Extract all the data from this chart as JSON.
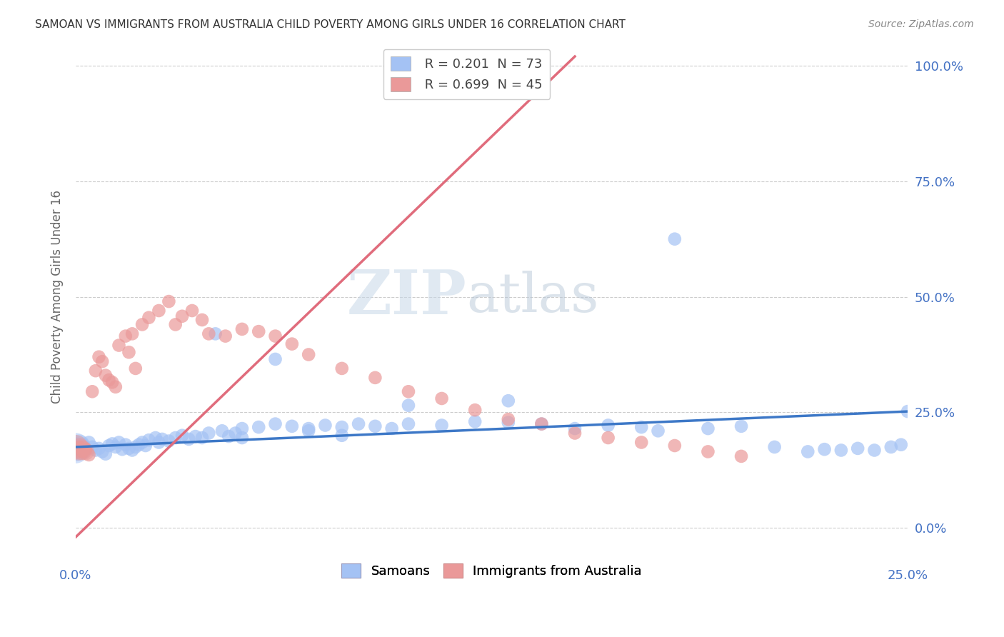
{
  "title": "SAMOAN VS IMMIGRANTS FROM AUSTRALIA CHILD POVERTY AMONG GIRLS UNDER 16 CORRELATION CHART",
  "source": "Source: ZipAtlas.com",
  "ylabel": "Child Poverty Among Girls Under 16",
  "samoan_color": "#a4c2f4",
  "australia_color": "#ea9999",
  "samoan_line_color": "#3d78c7",
  "australia_line_color": "#e06c7c",
  "watermark_zip_color": "#c8d8e8",
  "watermark_atlas_color": "#b8c8d8",
  "background_color": "#ffffff",
  "grid_color": "#cccccc",
  "axis_label_color": "#4472c4",
  "title_color": "#333333",
  "source_color": "#888888",
  "R_samoan": 0.201,
  "N_samoan": 73,
  "R_aus": 0.699,
  "N_aus": 45,
  "xlim": [
    0.0,
    0.25
  ],
  "ylim": [
    -0.05,
    1.05
  ],
  "yticks": [
    0.0,
    0.25,
    0.5,
    0.75,
    1.0
  ],
  "ytick_labels": [
    "0.0%",
    "25.0%",
    "50.0%",
    "75.0%",
    "100.0%"
  ],
  "xtick_labels_show": [
    "0.0%",
    "25.0%"
  ],
  "samoan_scatter": {
    "x": [
      0.001,
      0.002,
      0.003,
      0.004,
      0.005,
      0.006,
      0.007,
      0.008,
      0.009,
      0.01,
      0.011,
      0.012,
      0.013,
      0.014,
      0.015,
      0.016,
      0.017,
      0.018,
      0.019,
      0.02,
      0.021,
      0.022,
      0.024,
      0.025,
      0.026,
      0.028,
      0.03,
      0.032,
      0.034,
      0.036,
      0.038,
      0.04,
      0.042,
      0.044,
      0.046,
      0.048,
      0.05,
      0.055,
      0.06,
      0.065,
      0.07,
      0.075,
      0.08,
      0.085,
      0.09,
      0.095,
      0.1,
      0.11,
      0.12,
      0.13,
      0.14,
      0.15,
      0.16,
      0.17,
      0.175,
      0.18,
      0.19,
      0.2,
      0.21,
      0.22,
      0.225,
      0.23,
      0.235,
      0.24,
      0.245,
      0.248,
      0.25,
      0.06,
      0.08,
      0.1,
      0.13,
      0.05,
      0.07
    ],
    "y": [
      0.175,
      0.18,
      0.17,
      0.185,
      0.175,
      0.168,
      0.172,
      0.165,
      0.16,
      0.178,
      0.182,
      0.175,
      0.185,
      0.17,
      0.18,
      0.172,
      0.168,
      0.175,
      0.18,
      0.185,
      0.178,
      0.19,
      0.195,
      0.185,
      0.192,
      0.188,
      0.195,
      0.2,
      0.192,
      0.198,
      0.195,
      0.205,
      0.42,
      0.21,
      0.198,
      0.205,
      0.215,
      0.218,
      0.225,
      0.22,
      0.215,
      0.222,
      0.218,
      0.225,
      0.22,
      0.215,
      0.225,
      0.222,
      0.23,
      0.228,
      0.225,
      0.215,
      0.222,
      0.218,
      0.21,
      0.625,
      0.215,
      0.22,
      0.175,
      0.165,
      0.17,
      0.168,
      0.172,
      0.168,
      0.175,
      0.18,
      0.252,
      0.365,
      0.2,
      0.265,
      0.275,
      0.195,
      0.21
    ],
    "sizes": [
      180,
      180,
      180,
      180,
      180,
      180,
      180,
      180,
      180,
      180,
      180,
      180,
      180,
      180,
      180,
      180,
      180,
      180,
      180,
      180,
      180,
      180,
      180,
      180,
      180,
      180,
      180,
      180,
      180,
      180,
      180,
      180,
      180,
      180,
      180,
      180,
      180,
      180,
      180,
      180,
      180,
      180,
      180,
      180,
      180,
      180,
      180,
      180,
      180,
      180,
      180,
      180,
      180,
      180,
      180,
      180,
      180,
      180,
      180,
      180,
      180,
      180,
      180,
      180,
      180,
      180,
      180,
      180,
      180,
      180,
      180,
      180,
      180
    ]
  },
  "samoan_cluster": {
    "x": [
      0.0,
      0.0,
      0.001,
      0.001,
      0.002
    ],
    "y": [
      0.175,
      0.168,
      0.172,
      0.178,
      0.17
    ],
    "sizes": [
      800,
      700,
      600,
      500,
      400
    ]
  },
  "australia_scatter": {
    "x": [
      0.001,
      0.002,
      0.003,
      0.004,
      0.005,
      0.006,
      0.007,
      0.008,
      0.009,
      0.01,
      0.011,
      0.012,
      0.013,
      0.015,
      0.016,
      0.017,
      0.018,
      0.02,
      0.022,
      0.025,
      0.028,
      0.03,
      0.032,
      0.035,
      0.038,
      0.04,
      0.045,
      0.05,
      0.055,
      0.06,
      0.065,
      0.07,
      0.08,
      0.09,
      0.1,
      0.11,
      0.12,
      0.13,
      0.14,
      0.15,
      0.16,
      0.17,
      0.18,
      0.19,
      0.2
    ],
    "y": [
      0.175,
      0.165,
      0.17,
      0.158,
      0.295,
      0.34,
      0.37,
      0.36,
      0.33,
      0.32,
      0.315,
      0.305,
      0.395,
      0.415,
      0.38,
      0.42,
      0.345,
      0.44,
      0.455,
      0.47,
      0.49,
      0.44,
      0.458,
      0.47,
      0.45,
      0.42,
      0.415,
      0.43,
      0.425,
      0.415,
      0.398,
      0.375,
      0.345,
      0.325,
      0.295,
      0.28,
      0.255,
      0.235,
      0.225,
      0.205,
      0.195,
      0.185,
      0.178,
      0.165,
      0.155
    ],
    "sizes": [
      180,
      180,
      180,
      180,
      180,
      180,
      180,
      180,
      180,
      180,
      180,
      180,
      180,
      180,
      180,
      180,
      180,
      180,
      180,
      180,
      180,
      180,
      180,
      180,
      180,
      180,
      180,
      180,
      180,
      180,
      180,
      180,
      180,
      180,
      180,
      180,
      180,
      180,
      180,
      180,
      180,
      180,
      180,
      180,
      180
    ]
  },
  "australia_cluster": {
    "x": [
      0.0,
      0.001,
      0.002,
      0.003
    ],
    "y": [
      0.175,
      0.17,
      0.168,
      0.165
    ],
    "sizes": [
      600,
      500,
      400,
      300
    ]
  },
  "samoan_line": {
    "x0": 0.0,
    "y0": 0.175,
    "x1": 0.25,
    "y1": 0.252
  },
  "australia_line": {
    "x0": 0.0,
    "y0": -0.02,
    "x1": 0.15,
    "y1": 1.02
  }
}
